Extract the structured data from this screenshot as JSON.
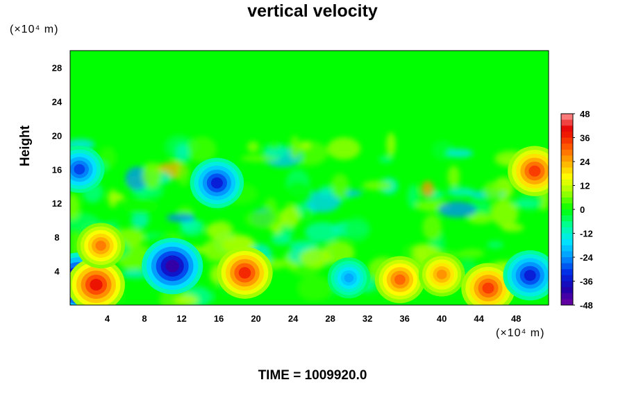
{
  "chart_data": {
    "type": "heatmap",
    "title": "vertical velocity",
    "ylabel": "Height",
    "xunit": "(×10⁴ m)",
    "yunit": "(×10⁴ m)",
    "xlim": [
      0,
      51.5
    ],
    "ylim": [
      0,
      30
    ],
    "xticks": [
      4,
      8,
      12,
      16,
      20,
      24,
      28,
      32,
      36,
      40,
      44,
      48
    ],
    "yticks": [
      4,
      8,
      12,
      16,
      20,
      24,
      28
    ],
    "colorbar": {
      "ticks": [
        48,
        36,
        24,
        12,
        0,
        -12,
        -24,
        -36,
        -48
      ],
      "range": [
        -48,
        48
      ],
      "levels": 32
    },
    "features": [
      {
        "x": 1.0,
        "y": 2.6,
        "value": -48
      },
      {
        "x": 2.8,
        "y": 2.4,
        "value": 38
      },
      {
        "x": 1.0,
        "y": 16.0,
        "value": -30
      },
      {
        "x": 3.3,
        "y": 7.0,
        "value": 28
      },
      {
        "x": 11.0,
        "y": 4.6,
        "value": -42
      },
      {
        "x": 15.8,
        "y": 14.4,
        "value": -34
      },
      {
        "x": 18.8,
        "y": 3.8,
        "value": 36
      },
      {
        "x": 30.0,
        "y": 3.2,
        "value": -22
      },
      {
        "x": 35.5,
        "y": 3.0,
        "value": 30
      },
      {
        "x": 40.0,
        "y": 3.6,
        "value": 26
      },
      {
        "x": 45.0,
        "y": 2.0,
        "value": 34
      },
      {
        "x": 49.5,
        "y": 3.5,
        "value": -34
      },
      {
        "x": 50.0,
        "y": 15.8,
        "value": 34
      }
    ]
  },
  "footer": {
    "time_label": "TIME = 1009920.0"
  }
}
